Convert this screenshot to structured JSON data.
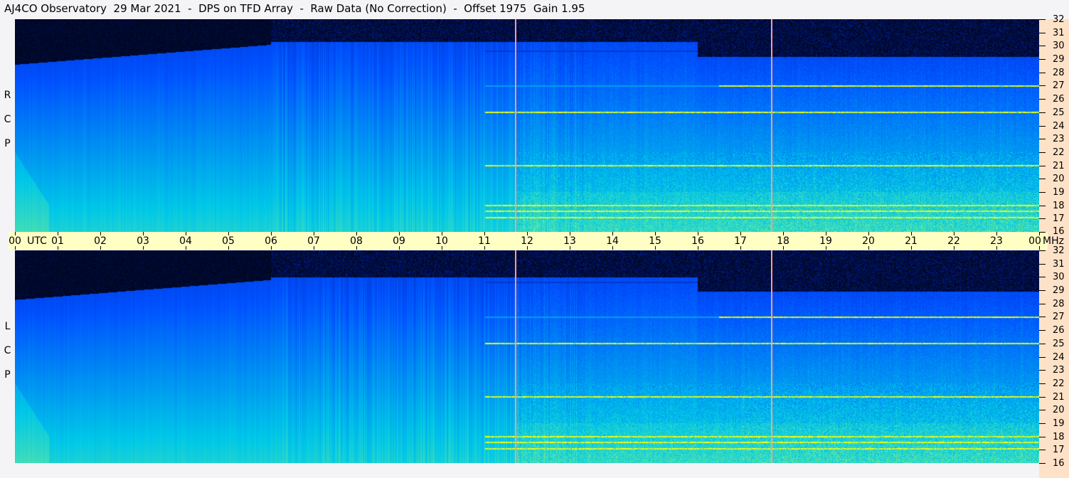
{
  "title": "AJ4CO Observatory  29 Mar 2021  -  DPS on TFD Array  -  Raw Data (No Correction)  -  Offset 1975  Gain 1.95",
  "chart_data": {
    "type": "heatmap",
    "panels": [
      {
        "label": "RCP"
      },
      {
        "label": "LCP"
      }
    ],
    "x_axis": {
      "unit": "UTC",
      "range_hours": [
        0,
        24
      ],
      "tick_labels": [
        "00",
        "01",
        "02",
        "03",
        "04",
        "05",
        "06",
        "07",
        "08",
        "09",
        "10",
        "11",
        "12",
        "13",
        "14",
        "15",
        "16",
        "17",
        "18",
        "19",
        "20",
        "21",
        "22",
        "23",
        "00"
      ]
    },
    "y_axis": {
      "unit": "MHz",
      "range": [
        16,
        32
      ],
      "tick_labels": [
        "32",
        "31",
        "30",
        "29",
        "28",
        "27",
        "26",
        "25",
        "24",
        "23",
        "22",
        "21",
        "20",
        "19",
        "18",
        "17",
        "16"
      ]
    },
    "markers_utc_hours": [
      11.73,
      17.73
    ],
    "colormap": [
      "#000000",
      "#0020a0",
      "#0050ff",
      "#00c8e8",
      "#60e8a0",
      "#ffff00",
      "#ff00ff"
    ],
    "features": {
      "night_cutoff_mhz_before_06": 28.7,
      "day_cutoff_mhz": 30.3,
      "interference_lines_mhz": [
        17.1,
        17.6,
        18.0,
        21.0,
        25.0,
        27.0,
        29.6
      ]
    }
  },
  "colors": {
    "time_strip": "#ffffc4",
    "freq_strip": "#fde2c8",
    "marker": "#ff9a9a",
    "background": "#f4f4f6"
  }
}
